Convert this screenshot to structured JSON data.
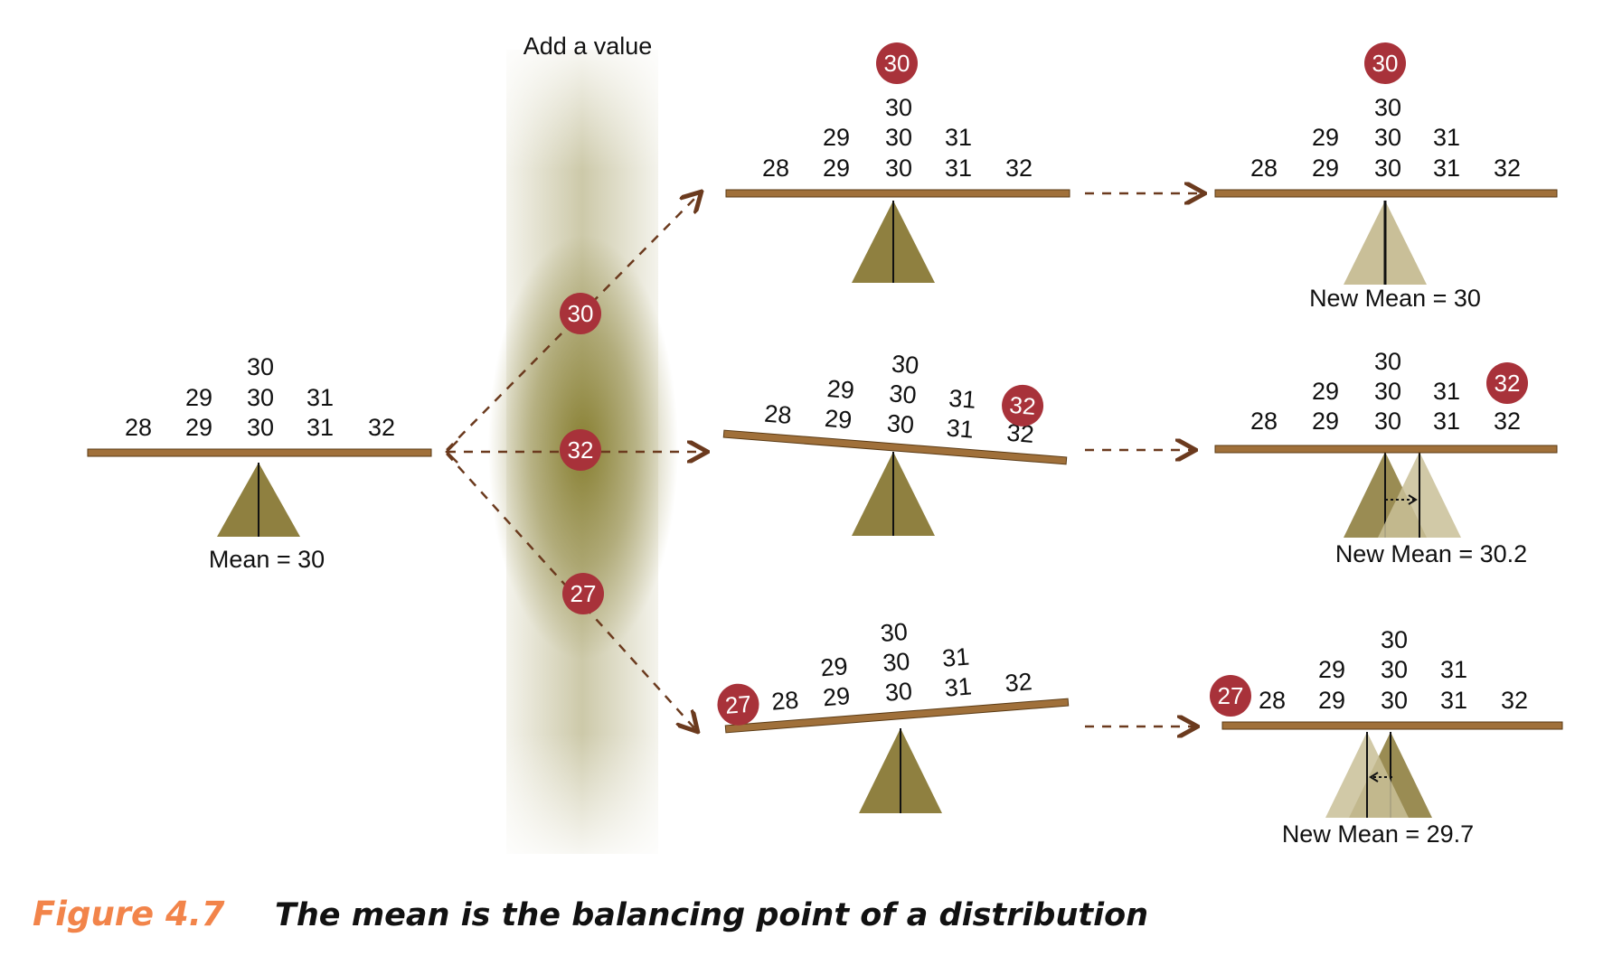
{
  "column_title": "Add a value",
  "initial": {
    "rows": [
      [
        "30"
      ],
      [
        "29",
        "30",
        "31"
      ],
      [
        "28",
        "29",
        "30",
        "31",
        "32"
      ]
    ],
    "mean_label": "Mean = 30"
  },
  "added_values": [
    "30",
    "32",
    "27"
  ],
  "scenarios": [
    {
      "added": "30",
      "before_rows": [
        [
          "30"
        ],
        [
          "29",
          "30",
          "31"
        ],
        [
          "28",
          "29",
          "30",
          "31",
          "32"
        ]
      ],
      "after_rows": [
        [
          "30"
        ],
        [
          "29",
          "30",
          "31"
        ],
        [
          "28",
          "29",
          "30",
          "31",
          "32"
        ]
      ],
      "new_mean_label": "New Mean = 30"
    },
    {
      "added": "32",
      "before_rows": [
        [
          "30"
        ],
        [
          "29",
          "30",
          "31"
        ],
        [
          "28",
          "29",
          "30",
          "31",
          "32"
        ]
      ],
      "after_rows": [
        [
          "30"
        ],
        [
          "29",
          "30",
          "31"
        ],
        [
          "28",
          "29",
          "30",
          "31",
          "32"
        ]
      ],
      "new_mean_label": "New Mean = 30.2"
    },
    {
      "added": "27",
      "before_rows": [
        [
          "30"
        ],
        [
          "29",
          "30",
          "31"
        ],
        [
          "28",
          "29",
          "30",
          "31",
          "32"
        ]
      ],
      "after_rows": [
        [
          "30"
        ],
        [
          "29",
          "30",
          "31"
        ],
        [
          "28",
          "29",
          "30",
          "31",
          "32"
        ]
      ],
      "new_mean_label": "New Mean = 29.7"
    }
  ],
  "caption": {
    "label": "Figure 4.7",
    "text": "The mean is the balancing point of a distribution"
  },
  "colors": {
    "beam": "#a0703a",
    "beam_edge": "#5a3a14",
    "fulcrum": "#8f8040",
    "fulcrum_light": "#c9bf98",
    "badge": "#a8323a",
    "arrow": "#6b3a1e",
    "caption_label": "#f2844a"
  }
}
